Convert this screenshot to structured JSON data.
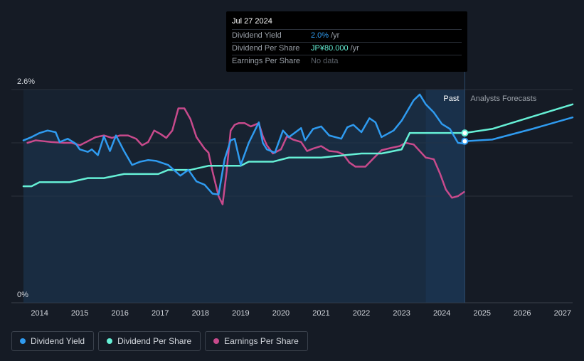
{
  "colors": {
    "background": "#151b25",
    "dividend_yield": "#2f9bf0",
    "dividend_per_share": "#66f0d6",
    "earnings_per_share": "#c84a8c",
    "forecast_shade": "#19304a",
    "gridline": "#2a313c"
  },
  "tooltip": {
    "date": "Jul 27 2024",
    "rows": [
      {
        "label": "Dividend Yield",
        "value": "2.0%",
        "unit": "/yr"
      },
      {
        "label": "Dividend Per Share",
        "value": "JP¥80.000",
        "unit": "/yr"
      },
      {
        "label": "Earnings Per Share",
        "value": "No data",
        "unit": ""
      }
    ]
  },
  "region_labels": {
    "past": "Past",
    "forecast": "Analysts Forecasts"
  },
  "legend": [
    {
      "label": "Dividend Yield",
      "color": "#2f9bf0"
    },
    {
      "label": "Dividend Per Share",
      "color": "#66f0d6"
    },
    {
      "label": "Earnings Per Share",
      "color": "#c84a8c"
    }
  ],
  "chart_data": {
    "type": "line",
    "title": "",
    "xlabel": "",
    "ylabel": "",
    "y_tick_labels": [
      "2.6%",
      "0%"
    ],
    "ylim": [
      0,
      2.6
    ],
    "xlim": [
      2013.3,
      2027.25
    ],
    "x_ticks": [
      2014,
      2015,
      2016,
      2017,
      2018,
      2019,
      2020,
      2021,
      2022,
      2023,
      2024,
      2025,
      2026,
      2027
    ],
    "x_tick_labels": [
      "2014",
      "2015",
      "2016",
      "2017",
      "2018",
      "2019",
      "2020",
      "2021",
      "2022",
      "2023",
      "2024",
      "2025",
      "2026",
      "2027"
    ],
    "forecast_shade_start": 2023.6,
    "forecast_start": 2024.57,
    "series": [
      {
        "name": "Dividend Yield",
        "unit": "%",
        "points": [
          [
            2013.6,
            1.98
          ],
          [
            2013.8,
            2.02
          ],
          [
            2014.0,
            2.07
          ],
          [
            2014.2,
            2.1
          ],
          [
            2014.4,
            2.08
          ],
          [
            2014.5,
            1.96
          ],
          [
            2014.7,
            2.0
          ],
          [
            2014.9,
            1.94
          ],
          [
            2015.0,
            1.87
          ],
          [
            2015.2,
            1.84
          ],
          [
            2015.3,
            1.87
          ],
          [
            2015.45,
            1.8
          ],
          [
            2015.6,
            2.03
          ],
          [
            2015.75,
            1.85
          ],
          [
            2015.9,
            2.04
          ],
          [
            2016.1,
            1.85
          ],
          [
            2016.3,
            1.68
          ],
          [
            2016.5,
            1.72
          ],
          [
            2016.7,
            1.74
          ],
          [
            2016.9,
            1.73
          ],
          [
            2017.2,
            1.68
          ],
          [
            2017.5,
            1.55
          ],
          [
            2017.7,
            1.62
          ],
          [
            2017.9,
            1.48
          ],
          [
            2018.1,
            1.44
          ],
          [
            2018.3,
            1.33
          ],
          [
            2018.45,
            1.32
          ],
          [
            2018.6,
            1.75
          ],
          [
            2018.75,
            1.98
          ],
          [
            2018.85,
            2.0
          ],
          [
            2019.0,
            1.68
          ],
          [
            2019.2,
            1.95
          ],
          [
            2019.45,
            2.2
          ],
          [
            2019.55,
            1.95
          ],
          [
            2019.65,
            1.87
          ],
          [
            2019.85,
            1.83
          ],
          [
            2020.05,
            2.1
          ],
          [
            2020.2,
            2.02
          ],
          [
            2020.5,
            2.13
          ],
          [
            2020.6,
            1.98
          ],
          [
            2020.8,
            2.12
          ],
          [
            2021.0,
            2.15
          ],
          [
            2021.2,
            2.04
          ],
          [
            2021.5,
            2.0
          ],
          [
            2021.65,
            2.14
          ],
          [
            2021.8,
            2.17
          ],
          [
            2022.0,
            2.08
          ],
          [
            2022.2,
            2.25
          ],
          [
            2022.35,
            2.2
          ],
          [
            2022.5,
            2.02
          ],
          [
            2022.8,
            2.1
          ],
          [
            2023.0,
            2.22
          ],
          [
            2023.3,
            2.47
          ],
          [
            2023.45,
            2.54
          ],
          [
            2023.6,
            2.42
          ],
          [
            2023.8,
            2.32
          ],
          [
            2024.0,
            2.18
          ],
          [
            2024.2,
            2.12
          ],
          [
            2024.4,
            1.95
          ],
          [
            2024.55,
            1.94
          ],
          [
            2024.57,
            1.97
          ],
          [
            2025.25,
            1.99
          ],
          [
            2026.25,
            2.12
          ],
          [
            2027.25,
            2.26
          ]
        ]
      },
      {
        "name": "Dividend Per Share",
        "unit": "JP¥",
        "points": [
          [
            2013.6,
            1.42
          ],
          [
            2013.8,
            1.42
          ],
          [
            2014.0,
            1.47
          ],
          [
            2014.55,
            1.47
          ],
          [
            2014.75,
            1.47
          ],
          [
            2015.2,
            1.52
          ],
          [
            2015.6,
            1.52
          ],
          [
            2016.1,
            1.57
          ],
          [
            2016.6,
            1.57
          ],
          [
            2016.95,
            1.57
          ],
          [
            2017.2,
            1.62
          ],
          [
            2017.75,
            1.62
          ],
          [
            2018.2,
            1.67
          ],
          [
            2018.6,
            1.67
          ],
          [
            2019.0,
            1.67
          ],
          [
            2019.2,
            1.72
          ],
          [
            2019.8,
            1.72
          ],
          [
            2020.2,
            1.77
          ],
          [
            2021.0,
            1.77
          ],
          [
            2022.0,
            1.82
          ],
          [
            2022.5,
            1.82
          ],
          [
            2023.0,
            1.87
          ],
          [
            2023.2,
            2.07
          ],
          [
            2024.0,
            2.07
          ],
          [
            2024.57,
            2.07
          ],
          [
            2025.25,
            2.12
          ],
          [
            2026.25,
            2.27
          ],
          [
            2027.25,
            2.42
          ]
        ]
      },
      {
        "name": "Earnings Per Share",
        "unit": "JP¥",
        "points": [
          [
            2013.7,
            1.95
          ],
          [
            2013.9,
            1.98
          ],
          [
            2014.1,
            1.97
          ],
          [
            2014.3,
            1.96
          ],
          [
            2014.6,
            1.95
          ],
          [
            2014.8,
            1.95
          ],
          [
            2015.0,
            1.92
          ],
          [
            2015.2,
            1.97
          ],
          [
            2015.4,
            2.02
          ],
          [
            2015.6,
            2.04
          ],
          [
            2015.8,
            2.01
          ],
          [
            2016.0,
            2.04
          ],
          [
            2016.2,
            2.04
          ],
          [
            2016.4,
            2.0
          ],
          [
            2016.55,
            1.92
          ],
          [
            2016.7,
            1.96
          ],
          [
            2016.85,
            2.1
          ],
          [
            2017.0,
            2.06
          ],
          [
            2017.15,
            2.01
          ],
          [
            2017.3,
            2.1
          ],
          [
            2017.45,
            2.37
          ],
          [
            2017.6,
            2.37
          ],
          [
            2017.75,
            2.24
          ],
          [
            2017.9,
            2.02
          ],
          [
            2018.0,
            1.95
          ],
          [
            2018.1,
            1.88
          ],
          [
            2018.2,
            1.83
          ],
          [
            2018.3,
            1.6
          ],
          [
            2018.45,
            1.3
          ],
          [
            2018.55,
            1.2
          ],
          [
            2018.65,
            1.6
          ],
          [
            2018.75,
            2.1
          ],
          [
            2018.85,
            2.17
          ],
          [
            2018.95,
            2.19
          ],
          [
            2019.1,
            2.19
          ],
          [
            2019.25,
            2.15
          ],
          [
            2019.45,
            2.19
          ],
          [
            2019.55,
            2.03
          ],
          [
            2019.65,
            1.92
          ],
          [
            2019.8,
            1.82
          ],
          [
            2020.0,
            1.87
          ],
          [
            2020.15,
            2.03
          ],
          [
            2020.3,
            1.99
          ],
          [
            2020.5,
            1.96
          ],
          [
            2020.65,
            1.85
          ],
          [
            2020.8,
            1.88
          ],
          [
            2021.0,
            1.91
          ],
          [
            2021.2,
            1.85
          ],
          [
            2021.4,
            1.84
          ],
          [
            2021.55,
            1.81
          ],
          [
            2021.7,
            1.71
          ],
          [
            2021.85,
            1.66
          ],
          [
            2022.1,
            1.66
          ],
          [
            2022.3,
            1.76
          ],
          [
            2022.5,
            1.86
          ],
          [
            2022.75,
            1.89
          ],
          [
            2022.95,
            1.91
          ],
          [
            2023.1,
            1.95
          ],
          [
            2023.3,
            1.93
          ],
          [
            2023.45,
            1.85
          ],
          [
            2023.6,
            1.77
          ],
          [
            2023.8,
            1.75
          ],
          [
            2023.95,
            1.58
          ],
          [
            2024.1,
            1.38
          ],
          [
            2024.25,
            1.28
          ],
          [
            2024.4,
            1.3
          ],
          [
            2024.55,
            1.35
          ]
        ]
      }
    ],
    "markers": [
      {
        "series": "Dividend Yield",
        "x": 2024.57,
        "y": 1.97
      },
      {
        "series": "Dividend Per Share",
        "x": 2024.57,
        "y": 2.07
      }
    ]
  }
}
